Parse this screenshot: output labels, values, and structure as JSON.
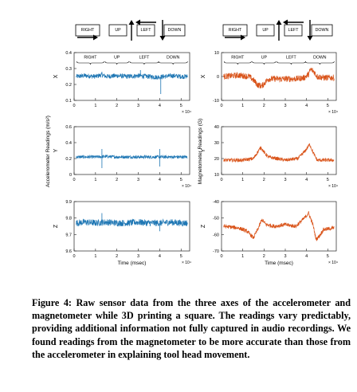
{
  "caption": "Figure 4: Raw sensor data from the three axes of the accelerometer and magnetometer while 3D printing a square. The readings vary predictably, providing additional information not fully captured in audio recordings. We found readings from the magnetometer to be more accurate than those from the accelerometer in explaining tool head movement.",
  "direction_labels": [
    "RIGHT",
    "UP",
    "LEFT",
    "DOWN"
  ],
  "colors": {
    "accelerometer": "#1f77b4",
    "magnetometer": "#d95319"
  },
  "chart_data": [
    {
      "type": "line",
      "panel": "accelerometer-x",
      "ylabel": "X",
      "group_ylabel": "Accelerometer Readings (m/s²)",
      "xlabel": "",
      "x_exponent": "× 10⁴",
      "xlim": [
        0,
        5.4
      ],
      "ylim": [
        0.1,
        0.4
      ],
      "xticks": [
        "0",
        "1",
        "2",
        "3",
        "4",
        "5"
      ],
      "yticks": [
        "0.1",
        "0.2",
        "0.3",
        "0.4"
      ],
      "segment_labels": [
        "RIGHT",
        "UP",
        "LEFT",
        "DOWN"
      ],
      "series": [
        {
          "x": [
            0.1,
            0.5,
            1.0,
            1.3,
            1.5,
            2.0,
            2.5,
            3.0,
            3.5,
            3.9,
            4.2,
            4.6,
            5.0,
            5.3
          ],
          "y": [
            0.25,
            0.255,
            0.25,
            0.26,
            0.25,
            0.255,
            0.25,
            0.255,
            0.25,
            0.245,
            0.25,
            0.255,
            0.25,
            0.25
          ],
          "noise": 0.015,
          "spikes": [
            {
              "x": 4.05,
              "y": 0.14
            },
            {
              "x": 3.1,
              "y": 0.29
            },
            {
              "x": 1.3,
              "y": 0.28
            }
          ]
        }
      ]
    },
    {
      "type": "line",
      "panel": "accelerometer-y",
      "ylabel": "Y",
      "xlabel": "",
      "x_exponent": "× 10⁴",
      "xlim": [
        0,
        5.4
      ],
      "ylim": [
        0,
        0.6
      ],
      "xticks": [
        "0",
        "1",
        "2",
        "3",
        "4",
        "5"
      ],
      "yticks": [
        "0",
        "0.2",
        "0.4",
        "0.6"
      ],
      "series": [
        {
          "x": [
            0.1,
            0.5,
            1.0,
            1.5,
            2.0,
            2.5,
            3.0,
            3.5,
            4.0,
            4.5,
            5.0,
            5.3
          ],
          "y": [
            0.22,
            0.22,
            0.22,
            0.225,
            0.22,
            0.22,
            0.22,
            0.22,
            0.22,
            0.22,
            0.22,
            0.22
          ],
          "noise": 0.02,
          "spikes": [
            {
              "x": 1.3,
              "y": 0.08
            },
            {
              "x": 1.3,
              "y": 0.32
            },
            {
              "x": 4.0,
              "y": 0.1
            },
            {
              "x": 4.0,
              "y": 0.32
            }
          ]
        }
      ]
    },
    {
      "type": "line",
      "panel": "accelerometer-z",
      "ylabel": "Z",
      "xlabel": "Time (msec)",
      "x_exponent": "× 10⁴",
      "xlim": [
        0,
        5.4
      ],
      "ylim": [
        9.6,
        9.9
      ],
      "xticks": [
        "0",
        "1",
        "2",
        "3",
        "4",
        "5"
      ],
      "yticks": [
        "9.6",
        "9.7",
        "9.8",
        "9.9"
      ],
      "series": [
        {
          "x": [
            0.1,
            0.5,
            1.0,
            1.5,
            2.0,
            2.5,
            3.0,
            3.5,
            4.0,
            4.5,
            5.0,
            5.3
          ],
          "y": [
            9.77,
            9.775,
            9.77,
            9.775,
            9.77,
            9.77,
            9.775,
            9.77,
            9.77,
            9.775,
            9.77,
            9.77
          ],
          "noise": 0.02,
          "spikes": [
            {
              "x": 1.3,
              "y": 9.83
            },
            {
              "x": 4.0,
              "y": 9.72
            }
          ]
        }
      ]
    },
    {
      "type": "line",
      "panel": "magnetometer-x",
      "ylabel": "X",
      "group_ylabel": "Magnetometer Readings (G)",
      "xlabel": "",
      "x_exponent": "× 10⁴",
      "xlim": [
        0,
        5.4
      ],
      "ylim": [
        -10,
        10
      ],
      "xticks": [
        "0",
        "1",
        "2",
        "3",
        "4",
        "5"
      ],
      "yticks": [
        "-10",
        "0",
        "10"
      ],
      "segment_labels": [
        "RIGHT",
        "UP",
        "LEFT",
        "DOWN"
      ],
      "series": [
        {
          "x": [
            0.1,
            0.8,
            1.3,
            1.5,
            1.7,
            1.9,
            2.0,
            2.2,
            2.6,
            3.0,
            3.5,
            3.9,
            4.1,
            4.2,
            4.35,
            4.5,
            4.8,
            5.3
          ],
          "y": [
            0,
            0.5,
            0,
            -1.5,
            -3.5,
            -4,
            -3,
            -1,
            -1,
            -1,
            -1,
            -0.5,
            1,
            3,
            2,
            0,
            -0.5,
            -0.5
          ],
          "noise": 1.3,
          "spikes": []
        }
      ]
    },
    {
      "type": "line",
      "panel": "magnetometer-y",
      "ylabel": "Y",
      "xlabel": "",
      "x_exponent": "× 10⁴",
      "xlim": [
        0,
        5.4
      ],
      "ylim": [
        10,
        40
      ],
      "xticks": [
        "0",
        "1",
        "2",
        "3",
        "4",
        "5"
      ],
      "yticks": [
        "10",
        "20",
        "30",
        "40"
      ],
      "series": [
        {
          "x": [
            0.1,
            1.0,
            1.5,
            1.7,
            1.85,
            2.0,
            2.2,
            2.6,
            3.0,
            3.6,
            3.95,
            4.15,
            4.3,
            4.5,
            5.0,
            5.3
          ],
          "y": [
            19,
            19,
            20,
            24,
            27,
            24,
            21,
            20,
            19,
            20,
            25,
            29,
            24,
            19,
            19,
            19
          ],
          "noise": 1.1,
          "spikes": []
        }
      ]
    },
    {
      "type": "line",
      "panel": "magnetometer-z",
      "ylabel": "Z",
      "xlabel": "Time (msec)",
      "x_exponent": "× 10⁴",
      "xlim": [
        0,
        5.4
      ],
      "ylim": [
        -70,
        -40
      ],
      "xticks": [
        "0",
        "1",
        "2",
        "3",
        "4",
        "5"
      ],
      "yticks": [
        "-70",
        "-60",
        "-50",
        "-40"
      ],
      "series": [
        {
          "x": [
            0.1,
            0.8,
            1.2,
            1.5,
            1.7,
            1.9,
            2.1,
            2.5,
            3.0,
            3.5,
            3.9,
            4.1,
            4.3,
            4.45,
            4.6,
            4.8,
            5.3
          ],
          "y": [
            -55,
            -56,
            -58,
            -62,
            -57,
            -51,
            -54,
            -55,
            -54,
            -55,
            -50,
            -47,
            -54,
            -63,
            -61,
            -57,
            -56
          ],
          "noise": 1.2,
          "spikes": []
        }
      ]
    }
  ]
}
